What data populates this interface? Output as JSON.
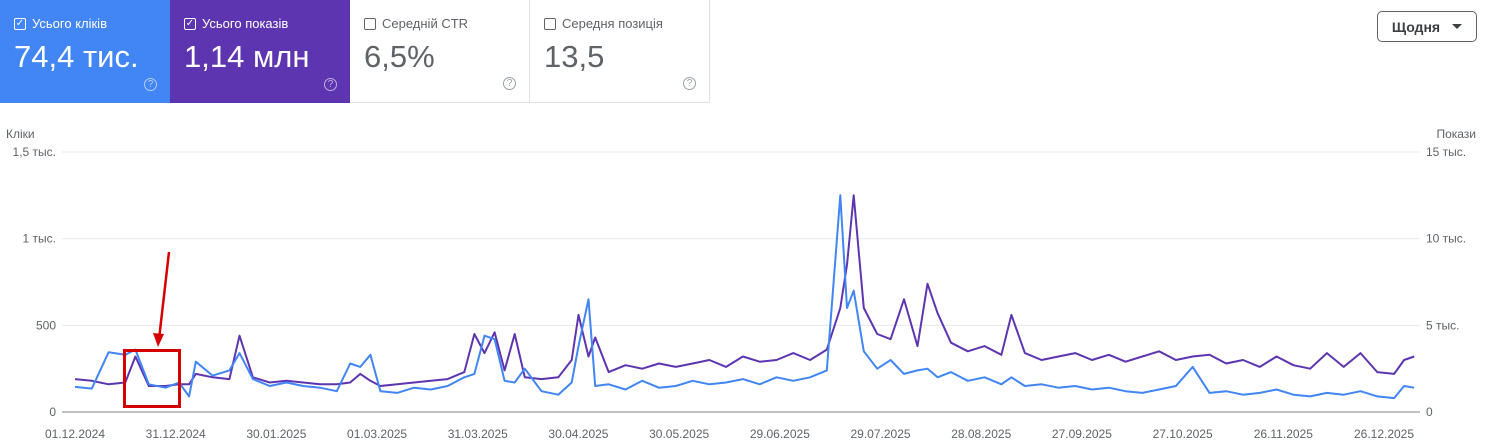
{
  "cards": [
    {
      "label": "Усього кліків",
      "value": "74,4 тис.",
      "checked": true,
      "color": "#4285f4"
    },
    {
      "label": "Усього показів",
      "value": "1,14 млн",
      "checked": true,
      "color": "#5e35b1"
    },
    {
      "label": "Середній CTR",
      "value": "6,5%",
      "checked": false
    },
    {
      "label": "Середня позиція",
      "value": "13,5",
      "checked": false
    }
  ],
  "period_button": "Щодня",
  "help_icon": "?",
  "check_icon": "✓",
  "chart_data": {
    "type": "line",
    "left_axis_label": "Кліки",
    "right_axis_label": "Покази",
    "left_ticks": [
      "0",
      "500",
      "1 тыс.",
      "1,5 тыс."
    ],
    "right_ticks": [
      "0",
      "5 тыс.",
      "10 тыс.",
      "15 тыс."
    ],
    "left_ylim": [
      0,
      1500
    ],
    "right_ylim": [
      0,
      15000
    ],
    "x_ticks": [
      "01.12.2024",
      "31.12.2024",
      "30.01.2025",
      "01.03.2025",
      "31.03.2025",
      "30.04.2025",
      "30.05.2025",
      "29.06.2025",
      "29.07.2025",
      "28.08.2025",
      "27.09.2025",
      "27.10.2025",
      "26.11.2025",
      "26.12.2025"
    ],
    "grid": true,
    "series_colors": {
      "clicks": "#4285f4",
      "impressions": "#5e35b1"
    },
    "points": [
      [
        "2024-12-01",
        145,
        1900
      ],
      [
        "2024-12-06",
        135,
        1800
      ],
      [
        "2024-12-11",
        345,
        1600
      ],
      [
        "2024-12-16",
        330,
        1700
      ],
      [
        "2024-12-19",
        360,
        3200
      ],
      [
        "2024-12-23",
        160,
        1500
      ],
      [
        "2024-12-28",
        140,
        1500
      ],
      [
        "2025-01-01",
        170,
        1600
      ],
      [
        "2025-01-04",
        90,
        1600
      ],
      [
        "2025-01-06",
        290,
        2200
      ],
      [
        "2025-01-11",
        210,
        2000
      ],
      [
        "2025-01-16",
        240,
        1900
      ],
      [
        "2025-01-19",
        340,
        4400
      ],
      [
        "2025-01-23",
        190,
        2000
      ],
      [
        "2025-01-28",
        150,
        1700
      ],
      [
        "2025-02-02",
        170,
        1800
      ],
      [
        "2025-02-07",
        150,
        1700
      ],
      [
        "2025-02-12",
        140,
        1600
      ],
      [
        "2025-02-17",
        120,
        1600
      ],
      [
        "2025-02-21",
        280,
        1700
      ],
      [
        "2025-02-24",
        260,
        2200
      ],
      [
        "2025-02-27",
        330,
        1800
      ],
      [
        "2025-03-02",
        120,
        1500
      ],
      [
        "2025-03-07",
        110,
        1600
      ],
      [
        "2025-03-12",
        140,
        1700
      ],
      [
        "2025-03-17",
        130,
        1800
      ],
      [
        "2025-03-22",
        150,
        1900
      ],
      [
        "2025-03-27",
        200,
        2300
      ],
      [
        "2025-03-30",
        220,
        4500
      ],
      [
        "2025-04-02",
        440,
        3400
      ],
      [
        "2025-04-05",
        420,
        4600
      ],
      [
        "2025-04-08",
        180,
        2400
      ],
      [
        "2025-04-11",
        170,
        4500
      ],
      [
        "2025-04-14",
        250,
        2000
      ],
      [
        "2025-04-19",
        120,
        1900
      ],
      [
        "2025-04-24",
        100,
        2000
      ],
      [
        "2025-04-28",
        170,
        3000
      ],
      [
        "2025-04-30",
        380,
        5600
      ],
      [
        "2025-05-03",
        650,
        3200
      ],
      [
        "2025-05-05",
        150,
        4300
      ],
      [
        "2025-05-09",
        160,
        2300
      ],
      [
        "2025-05-14",
        130,
        2700
      ],
      [
        "2025-05-19",
        180,
        2500
      ],
      [
        "2025-05-24",
        140,
        2800
      ],
      [
        "2025-05-29",
        150,
        2600
      ],
      [
        "2025-06-03",
        180,
        2800
      ],
      [
        "2025-06-08",
        160,
        3000
      ],
      [
        "2025-06-13",
        170,
        2600
      ],
      [
        "2025-06-18",
        190,
        3200
      ],
      [
        "2025-06-23",
        160,
        2900
      ],
      [
        "2025-06-28",
        200,
        3000
      ],
      [
        "2025-07-03",
        180,
        3400
      ],
      [
        "2025-07-08",
        200,
        3000
      ],
      [
        "2025-07-13",
        240,
        3600
      ],
      [
        "2025-07-17",
        1250,
        6000
      ],
      [
        "2025-07-19",
        600,
        8500
      ],
      [
        "2025-07-21",
        700,
        12500
      ],
      [
        "2025-07-24",
        350,
        6000
      ],
      [
        "2025-07-28",
        250,
        4500
      ],
      [
        "2025-08-01",
        300,
        4200
      ],
      [
        "2025-08-05",
        220,
        6500
      ],
      [
        "2025-08-09",
        240,
        3800
      ],
      [
        "2025-08-12",
        250,
        7400
      ],
      [
        "2025-08-15",
        200,
        5700
      ],
      [
        "2025-08-19",
        230,
        4000
      ],
      [
        "2025-08-24",
        180,
        3500
      ],
      [
        "2025-08-29",
        200,
        3800
      ],
      [
        "2025-09-03",
        160,
        3300
      ],
      [
        "2025-09-06",
        200,
        5600
      ],
      [
        "2025-09-10",
        150,
        3400
      ],
      [
        "2025-09-15",
        160,
        3000
      ],
      [
        "2025-09-20",
        140,
        3200
      ],
      [
        "2025-09-25",
        150,
        3400
      ],
      [
        "2025-09-30",
        130,
        3000
      ],
      [
        "2025-10-05",
        140,
        3300
      ],
      [
        "2025-10-10",
        120,
        2900
      ],
      [
        "2025-10-15",
        110,
        3200
      ],
      [
        "2025-10-20",
        130,
        3500
      ],
      [
        "2025-10-25",
        150,
        3000
      ],
      [
        "2025-10-30",
        260,
        3200
      ],
      [
        "2025-11-04",
        110,
        3300
      ],
      [
        "2025-11-09",
        120,
        2800
      ],
      [
        "2025-11-14",
        100,
        3000
      ],
      [
        "2025-11-19",
        110,
        2600
      ],
      [
        "2025-11-24",
        130,
        3200
      ],
      [
        "2025-11-29",
        100,
        2700
      ],
      [
        "2025-12-04",
        90,
        2500
      ],
      [
        "2025-12-09",
        110,
        3400
      ],
      [
        "2025-12-14",
        100,
        2600
      ],
      [
        "2025-12-19",
        120,
        3400
      ],
      [
        "2025-12-24",
        90,
        2300
      ],
      [
        "2025-12-29",
        80,
        2200
      ],
      [
        "2026-01-01",
        150,
        3000
      ],
      [
        "2026-01-04",
        140,
        3200
      ]
    ],
    "points_columns": [
      "date",
      "clicks",
      "impressions"
    ],
    "annotation": {
      "type": "red box with arrow",
      "color": "#d50000",
      "range": [
        "2024-12-21",
        "2025-01-05"
      ]
    }
  }
}
